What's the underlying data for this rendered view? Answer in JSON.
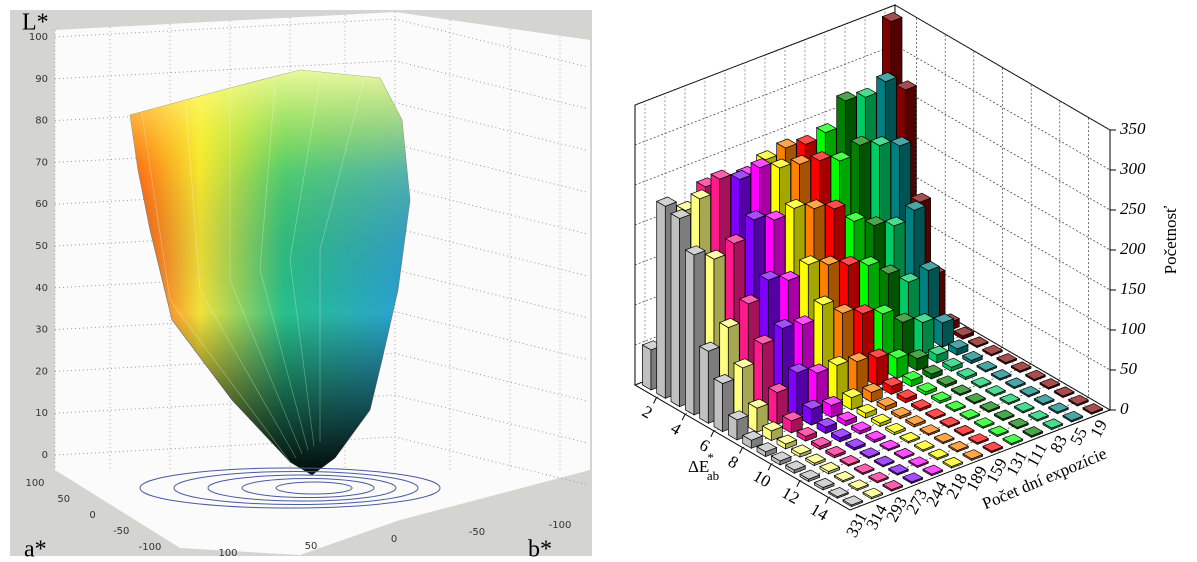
{
  "chart_data": [
    {
      "type": "surface3d",
      "zlabel": "L*",
      "xlabel": "a*",
      "ylabel": "b*",
      "zlim": [
        0,
        100
      ],
      "zticks": [
        0,
        10,
        20,
        30,
        40,
        50,
        60,
        70,
        80,
        90,
        100
      ],
      "xlim": [
        100,
        -100
      ],
      "xticks": [
        100,
        50,
        0,
        -50,
        -100
      ],
      "ylim": [
        100,
        -100
      ],
      "yticks": [
        100,
        50,
        0,
        -50,
        -100
      ],
      "grid": true
    },
    {
      "type": "bar3d",
      "xlabel": "ΔE",
      "xlabel_sup": "*",
      "xlabel_sub": "ab",
      "depth_label": "Počet dní expozície",
      "ylabel": "Početnosť",
      "x": [
        1,
        2,
        3,
        4,
        5,
        6,
        7,
        8,
        9,
        10,
        11,
        12,
        13,
        14,
        15
      ],
      "xlim": [
        0.5,
        15.5
      ],
      "xticks": [
        2,
        4,
        6,
        8,
        10,
        12,
        14
      ],
      "ylim": [
        0,
        350
      ],
      "yticks": [
        0,
        50,
        100,
        150,
        200,
        250,
        300,
        350
      ],
      "grid": true,
      "series": [
        {
          "name": "331",
          "color": "#c0c0c0",
          "values": [
            50,
            240,
            235,
            200,
            90,
            60,
            25,
            10,
            6,
            5,
            4,
            3,
            3,
            2,
            2
          ]
        },
        {
          "name": "314",
          "color": "#ffff80",
          "values": [
            30,
            225,
            250,
            185,
            110,
            70,
            30,
            12,
            6,
            4,
            3,
            3,
            2,
            2,
            2
          ]
        },
        {
          "name": "293",
          "color": "#ff1a8c",
          "values": [
            20,
            245,
            265,
            195,
            130,
            90,
            40,
            15,
            6,
            4,
            3,
            2,
            2,
            2,
            2
          ]
        },
        {
          "name": "273",
          "color": "#8000ff",
          "values": [
            15,
            230,
            255,
            215,
            150,
            100,
            55,
            20,
            8,
            5,
            3,
            2,
            2,
            2,
            2
          ]
        },
        {
          "name": "244",
          "color": "#ff00ff",
          "values": [
            15,
            240,
            260,
            205,
            140,
            95,
            45,
            15,
            6,
            4,
            3,
            2,
            2,
            2,
            2
          ]
        },
        {
          "name": "218",
          "color": "#ffff00",
          "values": [
            20,
            250,
            250,
            210,
            150,
            110,
            45,
            15,
            6,
            4,
            3,
            2,
            2,
            2,
            2
          ]
        },
        {
          "name": "189",
          "color": "#ff8000",
          "values": [
            25,
            255,
            245,
            200,
            140,
            90,
            40,
            12,
            5,
            3,
            3,
            2,
            2,
            2,
            2
          ]
        },
        {
          "name": "159",
          "color": "#ff0000",
          "values": [
            30,
            250,
            240,
            190,
            130,
            80,
            35,
            10,
            5,
            3,
            2,
            2,
            2,
            2,
            2
          ]
        },
        {
          "name": "131",
          "color": "#00ff00",
          "values": [
            40,
            255,
            230,
            165,
            120,
            70,
            25,
            8,
            4,
            3,
            2,
            2,
            2,
            2,
            2
          ]
        },
        {
          "name": "111",
          "color": "#008000",
          "values": [
            60,
            285,
            240,
            150,
            100,
            50,
            15,
            6,
            3,
            2,
            2,
            2,
            2,
            2,
            2
          ]
        },
        {
          "name": "83",
          "color": "#00cc66",
          "values": [
            80,
            280,
            230,
            140,
            80,
            40,
            10,
            5,
            3,
            2,
            2,
            2,
            2,
            2,
            2
          ]
        },
        {
          "name": "55",
          "color": "#008080",
          "values": [
            100,
            290,
            220,
            150,
            85,
            30,
            8,
            4,
            2,
            2,
            2,
            2,
            2,
            2,
            2
          ]
        },
        {
          "name": "19",
          "color": "#800000",
          "values": [
            345,
            270,
            140,
            60,
            10,
            4,
            2,
            2,
            2,
            2,
            2,
            2,
            2,
            2,
            2
          ]
        }
      ]
    }
  ]
}
